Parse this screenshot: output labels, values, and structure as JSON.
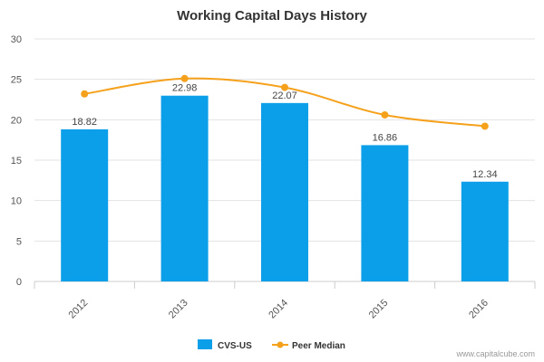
{
  "chart_data": {
    "type": "bar",
    "title": "Working Capital Days History",
    "categories": [
      "2012",
      "2013",
      "2014",
      "2015",
      "2016"
    ],
    "series": [
      {
        "name": "CVS-US",
        "type": "bar",
        "color": "#0a9fe8",
        "values": [
          18.82,
          22.98,
          22.07,
          16.86,
          12.34
        ]
      },
      {
        "name": "Peer Median",
        "type": "line",
        "color": "#f5a11c",
        "values": [
          23.2,
          25.1,
          24.0,
          20.6,
          19.2
        ]
      }
    ],
    "data_labels": [
      "18.82",
      "22.98",
      "22.07",
      "16.86",
      "12.34"
    ],
    "ylim": [
      0,
      30
    ],
    "yticks": [
      0,
      5,
      10,
      15,
      20,
      25,
      30
    ],
    "grid": true,
    "legend": "bottom-center"
  },
  "footer": "www.capitalcube.com"
}
